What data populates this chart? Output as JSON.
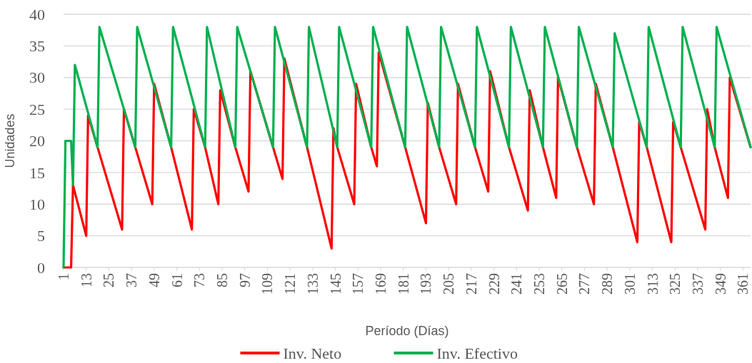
{
  "chart_data": {
    "type": "line",
    "xlabel": "Período (Días)",
    "ylabel": "Unidades",
    "xlim": [
      1,
      365
    ],
    "xticks": [
      1,
      13,
      25,
      37,
      49,
      61,
      73,
      85,
      97,
      109,
      121,
      133,
      145,
      157,
      169,
      181,
      193,
      205,
      217,
      229,
      241,
      253,
      265,
      277,
      289,
      301,
      313,
      325,
      337,
      349,
      361
    ],
    "ylim": [
      0,
      40
    ],
    "yticks": [
      0,
      5,
      10,
      15,
      20,
      25,
      30,
      35,
      40
    ],
    "grid": "y",
    "legend": "bottom",
    "marker": "none",
    "line_style": "solid",
    "series": [
      {
        "name": "Inv. Neto",
        "color": "#ff0000",
        "x": [
          1,
          5,
          6,
          13,
          14,
          19,
          32,
          33,
          39,
          48,
          49,
          58,
          69,
          70,
          76,
          83,
          84,
          92,
          99,
          100,
          112,
          117,
          118,
          130,
          143,
          144,
          146,
          155,
          156,
          164,
          167,
          168,
          182,
          193,
          194,
          200,
          209,
          210,
          219,
          226,
          227,
          237,
          247,
          248,
          255,
          262,
          263,
          273,
          282,
          283,
          292,
          305,
          306,
          310,
          323,
          324,
          328,
          341,
          342,
          346,
          353,
          354,
          365
        ],
        "values": [
          0,
          0,
          13,
          5,
          24,
          19,
          6,
          25,
          19,
          10,
          29,
          19,
          6,
          25,
          19,
          10,
          28,
          19,
          12,
          31,
          19,
          14,
          33,
          19,
          3,
          22,
          19,
          10,
          29,
          19,
          16,
          34,
          19,
          7,
          26,
          19,
          10,
          29,
          19,
          12,
          31,
          19,
          9,
          28,
          19,
          11,
          30,
          19,
          10,
          29,
          19,
          4,
          23,
          19,
          4,
          23,
          19,
          6,
          25,
          19,
          11,
          30,
          19
        ]
      },
      {
        "name": "Inv. Efectivo",
        "color": "#00b050",
        "x": [
          1,
          2,
          5,
          6,
          7,
          19,
          20,
          39,
          40,
          58,
          59,
          76,
          77,
          92,
          93,
          112,
          113,
          130,
          131,
          146,
          147,
          164,
          165,
          182,
          183,
          200,
          201,
          219,
          220,
          237,
          238,
          255,
          256,
          273,
          274,
          292,
          293,
          310,
          311,
          328,
          329,
          346,
          347,
          365
        ],
        "values": [
          0,
          20,
          20,
          13,
          32,
          19,
          38,
          19,
          38,
          19,
          38,
          19,
          38,
          19,
          38,
          19,
          38,
          19,
          38,
          19,
          38,
          19,
          38,
          19,
          38,
          19,
          38,
          19,
          38,
          19,
          38,
          19,
          38,
          19,
          38,
          19,
          37,
          19,
          38,
          19,
          38,
          19,
          38,
          19
        ]
      }
    ]
  }
}
